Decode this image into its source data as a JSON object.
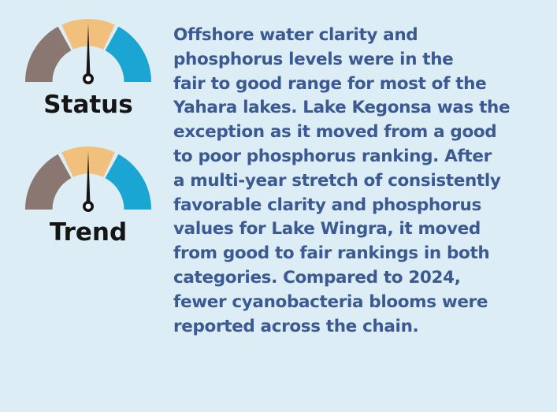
{
  "colors": {
    "background": "#dcedf5",
    "text": "#3b5a93",
    "label": "#151515",
    "gauge_poor": "#8b7772",
    "gauge_fair": "#f0c07c",
    "gauge_good": "#1aa5d2",
    "needle": "#151515"
  },
  "gauges": {
    "status": {
      "label": "Status"
    },
    "trend": {
      "label": "Trend"
    }
  },
  "summary": {
    "lines": [
      "Offshore water clarity and",
      "phosphorus levels were in the",
      "fair to good range for most of the",
      "Yahara lakes. Lake Kegonsa was the",
      "exception as it moved from a good",
      "to poor phosphorus ranking. After",
      "a multi-year stretch of consistently",
      "favorable clarity and phosphorus",
      "values for Lake Wingra, it moved",
      "from good to fair rankings in both",
      "categories. Compared to 2024,",
      "fewer cyanobacteria blooms were",
      "reported across the chain."
    ]
  }
}
